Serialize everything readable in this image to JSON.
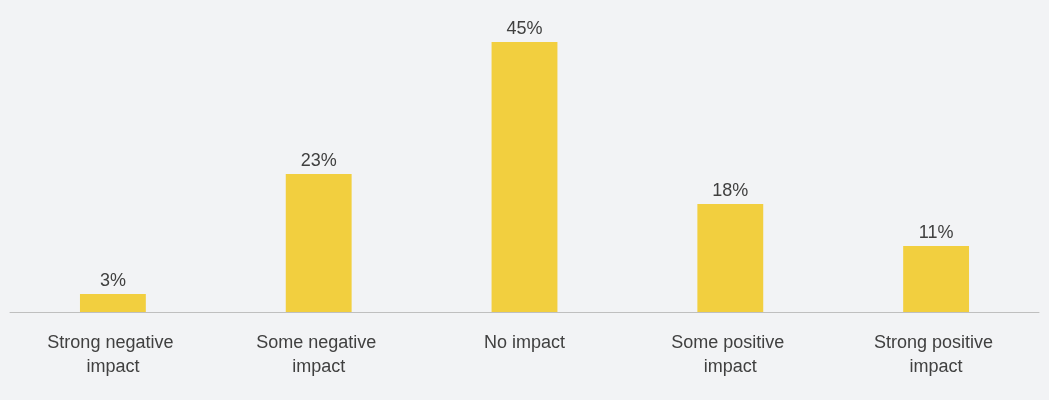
{
  "chart_data": {
    "type": "bar",
    "categories": [
      "Strong negative impact",
      "Some negative impact",
      "No impact",
      "Some positive impact",
      "Strong positive impact"
    ],
    "values": [
      3,
      23,
      45,
      18,
      11
    ],
    "value_labels": [
      "3%",
      "23%",
      "45%",
      "18%",
      "11%"
    ],
    "color": "#f2cf3f"
  }
}
